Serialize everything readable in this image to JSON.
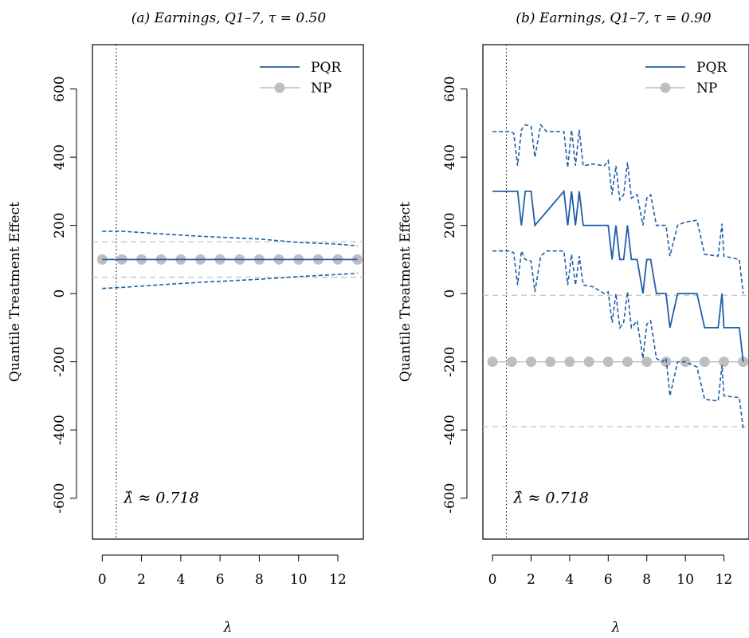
{
  "colors": {
    "pqr": "#1f5fa8",
    "np": "#bebebe",
    "np_ci": "#c8c8c8",
    "axis": "#000000"
  },
  "chart_data": [
    {
      "type": "line",
      "title": "(a) Earnings, Q1–7, τ = 0.50",
      "xlabel": "λ",
      "ylabel": "Quantile Treatment Effect",
      "xlim": [
        -0.5,
        13.3
      ],
      "ylim": [
        -720,
        730
      ],
      "xticks": [
        0,
        2,
        4,
        6,
        8,
        10,
        12
      ],
      "yticks": [
        -600,
        -400,
        -200,
        0,
        200,
        400,
        600
      ],
      "legend": {
        "position": "top-right",
        "entries": [
          "PQR",
          "NP"
        ]
      },
      "annotation": {
        "text": "λ̂ ≈ 0.718",
        "x": 1.5,
        "y": -600
      },
      "lambda_hat": 0.718,
      "np": {
        "name": "NP",
        "x": [
          0,
          1,
          2,
          3,
          4,
          5,
          6,
          7,
          8,
          9,
          10,
          11,
          12,
          13
        ],
        "values": [
          100,
          100,
          100,
          100,
          100,
          100,
          100,
          100,
          100,
          100,
          100,
          100,
          100,
          100
        ],
        "ci_upper": 152,
        "ci_lower": 48
      },
      "pqr": {
        "name": "PQR",
        "x": [
          0,
          13
        ],
        "values": [
          100,
          100
        ],
        "upper": {
          "x": [
            0,
            1,
            3,
            5,
            8,
            10,
            12,
            13
          ],
          "values": [
            183,
            183,
            175,
            168,
            160,
            150,
            145,
            140
          ]
        },
        "lower": {
          "x": [
            0,
            1,
            3,
            5,
            8,
            10,
            12,
            13
          ],
          "values": [
            15,
            18,
            26,
            33,
            42,
            50,
            56,
            60
          ]
        }
      }
    },
    {
      "type": "line",
      "title": "(b) Earnings, Q1–7, τ = 0.90",
      "xlabel": "λ",
      "ylabel": "Quantile Treatment Effect",
      "xlim": [
        -0.5,
        13.3
      ],
      "ylim": [
        -720,
        730
      ],
      "xticks": [
        0,
        2,
        4,
        6,
        8,
        10,
        12
      ],
      "yticks": [
        -600,
        -400,
        -200,
        0,
        200,
        400,
        600
      ],
      "legend": {
        "position": "top-right",
        "entries": [
          "PQR",
          "NP"
        ]
      },
      "annotation": {
        "text": "λ̂ ≈ 0.718",
        "x": 1.5,
        "y": -600
      },
      "lambda_hat": 0.718,
      "np": {
        "name": "NP",
        "x": [
          0,
          1,
          2,
          3,
          4,
          5,
          6,
          7,
          8,
          9,
          10,
          11,
          12,
          13
        ],
        "values": [
          -200,
          -200,
          -200,
          -200,
          -200,
          -200,
          -200,
          -200,
          -200,
          -200,
          -200,
          -200,
          -200,
          -200
        ],
        "ci_upper": -5,
        "ci_lower": -390
      },
      "pqr": {
        "name": "PQR",
        "x": [
          0,
          1.3,
          1.5,
          1.7,
          2.0,
          2.2,
          3.7,
          3.9,
          4.1,
          4.3,
          4.5,
          4.7,
          6.0,
          6.2,
          6.4,
          6.6,
          6.8,
          7.0,
          7.2,
          7.5,
          7.8,
          8.0,
          8.2,
          8.5,
          8.8,
          9.0,
          9.2,
          9.6,
          10.0,
          10.6,
          11.0,
          11.7,
          11.9,
          12.0,
          12.8,
          13.0
        ],
        "values": [
          300,
          300,
          200,
          300,
          300,
          200,
          300,
          200,
          300,
          200,
          300,
          200,
          200,
          100,
          200,
          100,
          100,
          200,
          100,
          100,
          0,
          100,
          100,
          0,
          0,
          0,
          -100,
          0,
          0,
          0,
          -100,
          -100,
          0,
          -100,
          -100,
          -200
        ],
        "upper": {
          "x": [
            0,
            0.9,
            1.1,
            1.3,
            1.5,
            1.7,
            2.0,
            2.2,
            2.5,
            2.8,
            3.7,
            3.9,
            4.1,
            4.3,
            4.5,
            4.7,
            5.2,
            5.8,
            6.0,
            6.2,
            6.4,
            6.6,
            6.8,
            7.0,
            7.2,
            7.5,
            7.8,
            8.0,
            8.2,
            8.5,
            8.8,
            9.0,
            9.2,
            9.6,
            10.0,
            10.6,
            11.0,
            11.7,
            11.9,
            12.0,
            12.8,
            13.0
          ],
          "values": [
            475,
            475,
            470,
            375,
            480,
            495,
            490,
            400,
            495,
            475,
            475,
            370,
            480,
            375,
            480,
            375,
            380,
            375,
            390,
            290,
            375,
            275,
            290,
            385,
            280,
            290,
            200,
            280,
            290,
            200,
            200,
            200,
            110,
            200,
            210,
            215,
            115,
            110,
            205,
            110,
            100,
            0
          ]
        },
        "lower": {
          "x": [
            0,
            0.9,
            1.1,
            1.3,
            1.5,
            1.7,
            2.0,
            2.2,
            2.5,
            2.8,
            3.7,
            3.9,
            4.1,
            4.3,
            4.5,
            4.7,
            5.2,
            5.8,
            6.0,
            6.2,
            6.4,
            6.6,
            6.8,
            7.0,
            7.2,
            7.5,
            7.8,
            8.0,
            8.2,
            8.5,
            8.8,
            9.0,
            9.2,
            9.6,
            10.0,
            10.6,
            11.0,
            11.7,
            11.9,
            12.0,
            12.8,
            13.0
          ],
          "values": [
            125,
            125,
            120,
            25,
            125,
            100,
            95,
            5,
            110,
            125,
            125,
            25,
            115,
            25,
            110,
            25,
            20,
            0,
            5,
            -85,
            0,
            -100,
            -85,
            5,
            -100,
            -80,
            -190,
            -90,
            -80,
            -190,
            -200,
            -190,
            -300,
            -200,
            -200,
            -215,
            -310,
            -315,
            -210,
            -300,
            -305,
            -395
          ]
        }
      }
    }
  ]
}
